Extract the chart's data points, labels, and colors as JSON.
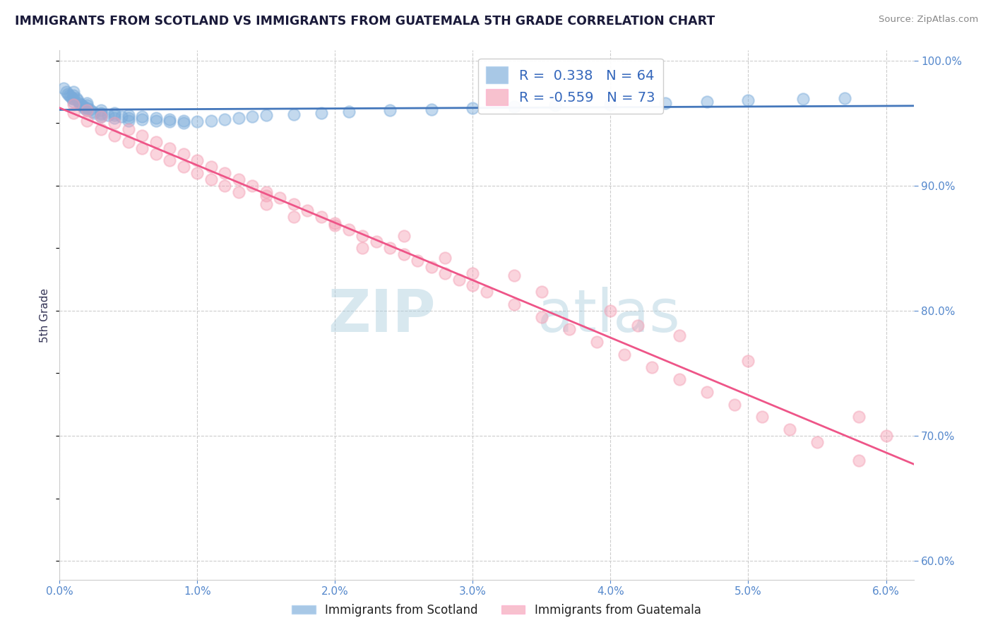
{
  "title": "IMMIGRANTS FROM SCOTLAND VS IMMIGRANTS FROM GUATEMALA 5TH GRADE CORRELATION CHART",
  "source": "Source: ZipAtlas.com",
  "ylabel": "5th Grade",
  "xmin": 0.0,
  "xmax": 0.062,
  "ymin": 0.585,
  "ymax": 1.008,
  "scotland_color": "#7AABDA",
  "guatemala_color": "#F4A0B5",
  "scotland_line_color": "#4477BB",
  "guatemala_line_color": "#EE5588",
  "scotland_R": 0.338,
  "scotland_N": 64,
  "guatemala_R": -0.559,
  "guatemala_N": 73,
  "watermark_zip": "ZIP",
  "watermark_atlas": "atlas",
  "xticks": [
    0.0,
    0.01,
    0.02,
    0.03,
    0.04,
    0.05,
    0.06
  ],
  "yticks": [
    0.6,
    0.7,
    0.8,
    0.9,
    1.0
  ],
  "scotland_x": [
    0.0003,
    0.0005,
    0.0006,
    0.0007,
    0.0008,
    0.0009,
    0.001,
    0.001,
    0.001,
    0.001,
    0.0012,
    0.0013,
    0.0014,
    0.0015,
    0.0016,
    0.0017,
    0.0018,
    0.002,
    0.002,
    0.002,
    0.002,
    0.0022,
    0.0024,
    0.0025,
    0.003,
    0.003,
    0.003,
    0.003,
    0.0035,
    0.004,
    0.004,
    0.004,
    0.0045,
    0.005,
    0.005,
    0.005,
    0.006,
    0.006,
    0.007,
    0.007,
    0.008,
    0.008,
    0.009,
    0.009,
    0.01,
    0.011,
    0.012,
    0.013,
    0.014,
    0.015,
    0.017,
    0.019,
    0.021,
    0.024,
    0.027,
    0.03,
    0.033,
    0.036,
    0.04,
    0.044,
    0.047,
    0.05,
    0.054,
    0.057
  ],
  "scotland_y": [
    0.978,
    0.975,
    0.973,
    0.972,
    0.971,
    0.97,
    0.975,
    0.972,
    0.969,
    0.967,
    0.97,
    0.968,
    0.966,
    0.965,
    0.964,
    0.963,
    0.962,
    0.966,
    0.964,
    0.962,
    0.96,
    0.961,
    0.959,
    0.958,
    0.96,
    0.958,
    0.957,
    0.955,
    0.956,
    0.958,
    0.956,
    0.954,
    0.955,
    0.956,
    0.954,
    0.952,
    0.955,
    0.953,
    0.954,
    0.952,
    0.953,
    0.951,
    0.952,
    0.95,
    0.951,
    0.952,
    0.953,
    0.954,
    0.955,
    0.956,
    0.957,
    0.958,
    0.959,
    0.96,
    0.961,
    0.962,
    0.963,
    0.964,
    0.965,
    0.966,
    0.967,
    0.968,
    0.969,
    0.97
  ],
  "guatemala_x": [
    0.001,
    0.001,
    0.002,
    0.002,
    0.003,
    0.003,
    0.004,
    0.004,
    0.005,
    0.005,
    0.006,
    0.006,
    0.007,
    0.007,
    0.008,
    0.008,
    0.009,
    0.009,
    0.01,
    0.01,
    0.011,
    0.011,
    0.012,
    0.012,
    0.013,
    0.013,
    0.014,
    0.015,
    0.015,
    0.016,
    0.017,
    0.017,
    0.018,
    0.019,
    0.02,
    0.021,
    0.022,
    0.022,
    0.023,
    0.024,
    0.025,
    0.026,
    0.027,
    0.028,
    0.029,
    0.03,
    0.031,
    0.033,
    0.035,
    0.037,
    0.039,
    0.041,
    0.043,
    0.045,
    0.047,
    0.049,
    0.051,
    0.053,
    0.055,
    0.058,
    0.02,
    0.028,
    0.035,
    0.042,
    0.015,
    0.025,
    0.033,
    0.04,
    0.05,
    0.058,
    0.03,
    0.045,
    0.06
  ],
  "guatemala_y": [
    0.965,
    0.958,
    0.96,
    0.952,
    0.955,
    0.945,
    0.95,
    0.94,
    0.945,
    0.935,
    0.94,
    0.93,
    0.935,
    0.925,
    0.93,
    0.92,
    0.925,
    0.915,
    0.92,
    0.91,
    0.915,
    0.905,
    0.91,
    0.9,
    0.905,
    0.895,
    0.9,
    0.895,
    0.885,
    0.89,
    0.885,
    0.875,
    0.88,
    0.875,
    0.87,
    0.865,
    0.86,
    0.85,
    0.855,
    0.85,
    0.845,
    0.84,
    0.835,
    0.83,
    0.825,
    0.82,
    0.815,
    0.805,
    0.795,
    0.785,
    0.775,
    0.765,
    0.755,
    0.745,
    0.735,
    0.725,
    0.715,
    0.705,
    0.695,
    0.68,
    0.868,
    0.842,
    0.815,
    0.788,
    0.892,
    0.86,
    0.828,
    0.8,
    0.76,
    0.715,
    0.83,
    0.78,
    0.7
  ]
}
